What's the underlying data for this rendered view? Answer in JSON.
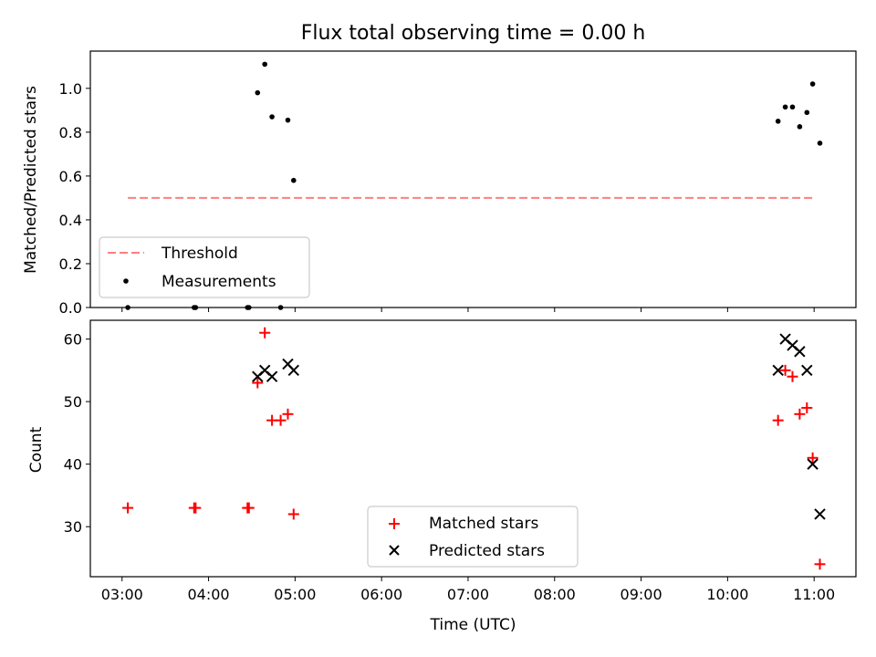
{
  "chart_data": [
    {
      "type": "scatter",
      "title": "Flux total observing time = 0.00 h",
      "xlabel": "",
      "ylabel": "Matched/Predicted stars",
      "xlim": [
        "02:38",
        "11:29"
      ],
      "ylim": [
        0,
        1.17
      ],
      "yticks": [
        "0.0",
        "0.2",
        "0.4",
        "0.6",
        "0.8",
        "1.0"
      ],
      "threshold": {
        "value": 0.5,
        "x_start": "03:04",
        "x_end": "11:00",
        "color": "#ff7f7f"
      },
      "series": [
        {
          "name": "Measurements",
          "marker": "dot",
          "color": "#000000",
          "points": [
            [
              "03:04",
              0.0
            ],
            [
              "03:50",
              0.0
            ],
            [
              "03:51",
              0.0
            ],
            [
              "04:27",
              0.0
            ],
            [
              "04:28",
              0.0
            ],
            [
              "04:34",
              0.98
            ],
            [
              "04:39",
              1.11
            ],
            [
              "04:44",
              0.87
            ],
            [
              "04:50",
              0.0
            ],
            [
              "04:55",
              0.855
            ],
            [
              "04:59",
              0.58
            ],
            [
              "10:35",
              0.85
            ],
            [
              "10:40",
              0.915
            ],
            [
              "10:45",
              0.915
            ],
            [
              "10:50",
              0.825
            ],
            [
              "10:55",
              0.89
            ],
            [
              "10:59",
              1.02
            ],
            [
              "11:04",
              0.75
            ]
          ]
        }
      ],
      "legend": {
        "position": "lower-left",
        "items": [
          {
            "label": "Threshold",
            "style": "dashed-line",
            "color": "#ff7f7f"
          },
          {
            "label": "Measurements",
            "style": "dot",
            "color": "#000000"
          }
        ]
      }
    },
    {
      "type": "scatter",
      "title": "",
      "xlabel": "Time (UTC)",
      "ylabel": "Count",
      "xlim": [
        "02:38",
        "11:29"
      ],
      "ylim": [
        22,
        63
      ],
      "yticks": [
        "30",
        "40",
        "50",
        "60"
      ],
      "xticks": [
        "03:00",
        "04:00",
        "05:00",
        "06:00",
        "07:00",
        "08:00",
        "09:00",
        "10:00",
        "11:00"
      ],
      "series": [
        {
          "name": "Matched stars",
          "marker": "plus",
          "color": "#ff0000",
          "points": [
            [
              "03:04",
              33
            ],
            [
              "03:50",
              33
            ],
            [
              "03:51",
              33
            ],
            [
              "04:27",
              33
            ],
            [
              "04:28",
              33
            ],
            [
              "04:34",
              53
            ],
            [
              "04:39",
              61
            ],
            [
              "04:44",
              47
            ],
            [
              "04:50",
              47
            ],
            [
              "04:55",
              48
            ],
            [
              "04:59",
              32
            ],
            [
              "10:35",
              47
            ],
            [
              "10:40",
              55
            ],
            [
              "10:45",
              54
            ],
            [
              "10:50",
              48
            ],
            [
              "10:55",
              49
            ],
            [
              "10:59",
              41
            ],
            [
              "11:04",
              24
            ]
          ]
        },
        {
          "name": "Predicted stars",
          "marker": "x",
          "color": "#000000",
          "points": [
            [
              "04:34",
              54
            ],
            [
              "04:39",
              55
            ],
            [
              "04:44",
              54
            ],
            [
              "04:55",
              56
            ],
            [
              "04:59",
              55
            ],
            [
              "10:35",
              55
            ],
            [
              "10:40",
              60
            ],
            [
              "10:45",
              59
            ],
            [
              "10:50",
              58
            ],
            [
              "10:55",
              55
            ],
            [
              "10:59",
              40
            ],
            [
              "11:04",
              32
            ]
          ]
        }
      ],
      "legend": {
        "position": "lower-center",
        "items": [
          {
            "label": "Matched stars",
            "style": "plus",
            "color": "#ff0000"
          },
          {
            "label": "Predicted stars",
            "style": "x",
            "color": "#000000"
          }
        ]
      }
    }
  ]
}
